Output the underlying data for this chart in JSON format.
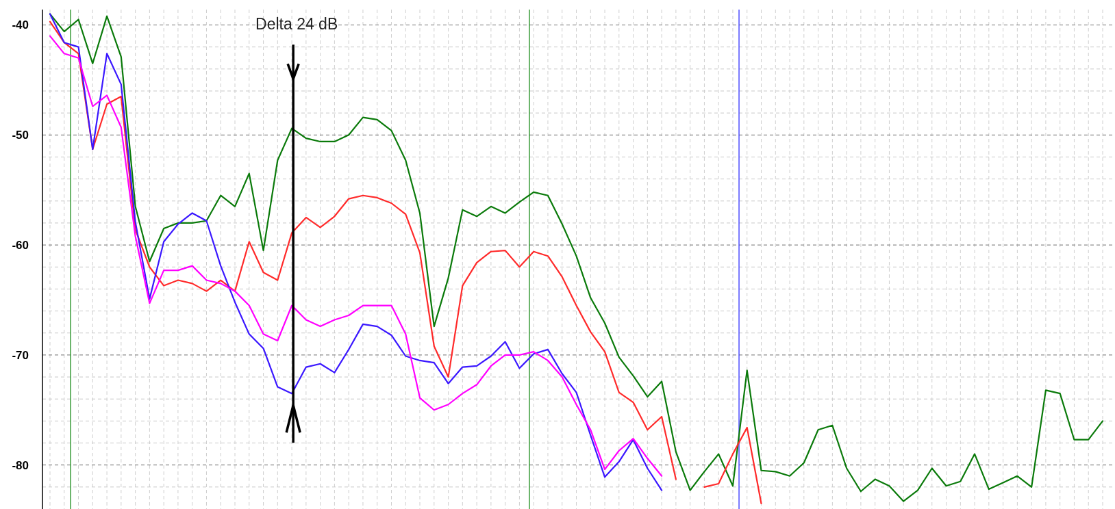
{
  "chart_data": {
    "type": "line",
    "grid": true,
    "categories": [
      null,
      null,
      null,
      null,
      null,
      null,
      null,
      null,
      null,
      null,
      null,
      null,
      null,
      null,
      null,
      null,
      null,
      null,
      null,
      null,
      null,
      null,
      null,
      null,
      null,
      null,
      null,
      null,
      null,
      null,
      null,
      null,
      null,
      null,
      null,
      null,
      null,
      null,
      null,
      null,
      null,
      null,
      null,
      null,
      null,
      null,
      null,
      null,
      null,
      null,
      null,
      null,
      null,
      null,
      null,
      null,
      null,
      null,
      null,
      null,
      null,
      null,
      null,
      null,
      null,
      null,
      null,
      null,
      null,
      null,
      null,
      null,
      null,
      null,
      null
    ],
    "ylim": [
      -84,
      -38.6
    ],
    "yticks": [
      -40,
      {
        "value": -42,
        "label": null
      },
      {
        "value": -44,
        "label": null
      },
      {
        "value": -46,
        "label": null
      },
      {
        "value": -48,
        "label": null
      },
      -50,
      {
        "value": -52,
        "label": null
      },
      {
        "value": -54,
        "label": null
      },
      {
        "value": -56,
        "label": null
      },
      {
        "value": -58,
        "label": null
      },
      -60,
      {
        "value": -62,
        "label": null
      },
      {
        "value": -64,
        "label": null
      },
      {
        "value": -66,
        "label": null
      },
      {
        "value": -68,
        "label": null
      },
      -70,
      {
        "value": -72,
        "label": null
      },
      {
        "value": -74,
        "label": null
      },
      {
        "value": -76,
        "label": null
      },
      {
        "value": -78,
        "label": null
      },
      -80,
      {
        "value": -82,
        "label": null
      }
    ],
    "annotations": [
      "Delta 24 dB"
    ],
    "series": [
      {
        "color": "#0a7a0a",
        "values": [
          -39.0,
          -40.6,
          -39.5,
          -43.5,
          -39.2,
          -42.9,
          -56.5,
          -61.5,
          -58.5,
          -58.0,
          -58.0,
          -57.8,
          -55.5,
          -56.5,
          -53.5,
          -60.5,
          -52.3,
          -49.4,
          -50.3,
          -50.6,
          -50.6,
          -50.0,
          -48.4,
          -48.6,
          -49.6,
          -52.3,
          -57.1,
          -67.4,
          -63.0,
          -56.8,
          -57.4,
          -56.5,
          -57.1,
          -56.1,
          -55.2,
          -55.5,
          -58.1,
          -61.0,
          -64.8,
          -67.1,
          -70.2,
          -71.9,
          -73.8,
          -72.4,
          -78.8,
          -82.3,
          -80.6,
          -79.0,
          -81.9,
          -71.4,
          -80.5,
          -80.6,
          -81.0,
          -79.8,
          -76.8,
          -76.4,
          -80.3,
          -82.4,
          -81.3,
          -81.9,
          -83.3,
          -82.3,
          -80.3,
          -81.9,
          -81.5,
          -79.0,
          -82.2,
          -81.6,
          -81.0,
          -82.0,
          -73.2,
          -73.5,
          -77.7,
          -77.7,
          -76.0
        ]
      },
      {
        "color": "#ff2a2a",
        "values": [
          -39.7,
          -41.6,
          -42.6,
          -51.3,
          -47.2,
          -46.5,
          -58.6,
          -62.0,
          -63.7,
          -63.2,
          -63.5,
          -64.2,
          -63.2,
          -64.2,
          -59.7,
          -62.5,
          -63.2,
          -58.9,
          -57.5,
          -58.4,
          -57.4,
          -55.8,
          -55.5,
          -55.7,
          -56.2,
          -57.2,
          -60.7,
          -69.2,
          -72.0,
          -63.7,
          -61.6,
          -60.6,
          -60.5,
          -62.0,
          -60.6,
          -61.0,
          -62.9,
          -65.5,
          -67.9,
          -69.7,
          -73.4,
          -74.3,
          -76.8,
          -75.6,
          -81.3,
          null,
          -82.0,
          -81.7,
          -79.0,
          -76.6,
          -83.5,
          null,
          null,
          null,
          null,
          null,
          null,
          null,
          null,
          null,
          null,
          null,
          null,
          null,
          null,
          null,
          null,
          null,
          null,
          null,
          null,
          null,
          null,
          null,
          null
        ]
      },
      {
        "color": "#3a17ff",
        "values": [
          -39.0,
          -41.6,
          -42.0,
          -51.3,
          -42.6,
          -45.4,
          -57.9,
          -64.9,
          -59.7,
          -58.1,
          -57.1,
          -57.8,
          -61.9,
          -65.2,
          -68.1,
          -69.4,
          -72.9,
          -73.5,
          -71.1,
          -70.8,
          -71.6,
          -69.5,
          -67.2,
          -67.4,
          -68.2,
          -70.1,
          -70.5,
          -70.7,
          -72.6,
          -71.1,
          -71.0,
          -70.1,
          -68.8,
          -71.2,
          -69.9,
          -69.5,
          -71.7,
          -73.4,
          -77.3,
          -81.1,
          -79.7,
          -77.7,
          -80.3,
          -82.3,
          null,
          null,
          null,
          null,
          null,
          null,
          null,
          null,
          null,
          null,
          null,
          null,
          null,
          null,
          null,
          null,
          null,
          null,
          null,
          null,
          null,
          null,
          null,
          null,
          null,
          null,
          null,
          null,
          null,
          null,
          null
        ]
      },
      {
        "color": "#ff00ff",
        "values": [
          -41.0,
          -42.6,
          -43.0,
          -47.4,
          -46.4,
          -49.3,
          -59.2,
          -65.3,
          -62.3,
          -62.3,
          -61.9,
          -63.2,
          -63.5,
          -64.2,
          -65.5,
          -68.1,
          -68.7,
          -65.5,
          -66.8,
          -67.4,
          -66.8,
          -66.4,
          -65.5,
          -65.5,
          -65.5,
          -68.1,
          -73.9,
          -75.0,
          -74.5,
          -73.5,
          -72.7,
          -71.0,
          -70.0,
          -70.0,
          -69.7,
          -70.5,
          -72.0,
          -74.5,
          -76.8,
          -80.4,
          -78.7,
          -77.6,
          -79.4,
          -81.0,
          null,
          null,
          null,
          null,
          null,
          null,
          null,
          null,
          null,
          null,
          null,
          null,
          null,
          null,
          null,
          null,
          null,
          null,
          null,
          null,
          null,
          null,
          null,
          null,
          null,
          null,
          null,
          null,
          null,
          null,
          null
        ]
      }
    ]
  }
}
